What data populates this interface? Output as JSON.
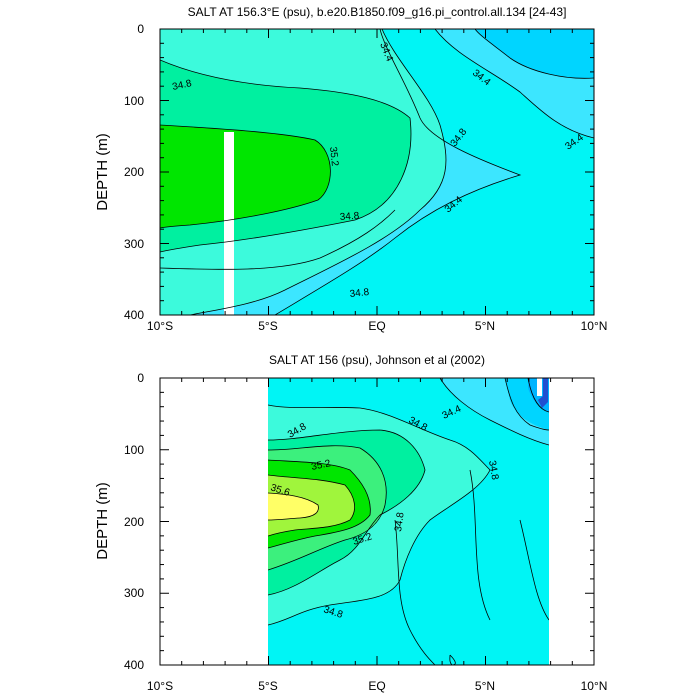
{
  "panels": [
    {
      "id": "model",
      "title": "SALT AT 156.3°E (psu), b.e20.B1850.f09_g16.pi_control.all.134 [24-43]",
      "ylabel": "DEPTH (m)",
      "xticklabels": [
        "10°S",
        "5°S",
        "EQ",
        "5°N",
        "10°N"
      ],
      "yticklabels": [
        "0",
        "100",
        "200",
        "300",
        "400"
      ],
      "contour_labels": [
        "34.8",
        "34.4",
        "34.8",
        "35.2",
        "34.8",
        "34.8",
        "34.4",
        "34.4",
        "34.4"
      ]
    },
    {
      "id": "obs",
      "title": "SALT AT 156 (psu), Johnson et al (2002)",
      "ylabel": "DEPTH (m)",
      "xticklabels": [
        "10°S",
        "5°S",
        "EQ",
        "5°N",
        "10°N"
      ],
      "yticklabels": [
        "0",
        "100",
        "200",
        "300",
        "400"
      ],
      "contour_labels": [
        "34.8",
        "34.8",
        "34.4",
        "35.2",
        "35.6",
        "35.2",
        "34.8",
        "34.8",
        "34.8"
      ]
    }
  ],
  "colors": {
    "c34_0": "#00b4ff",
    "c34_2": "#00d5ff",
    "c34_4": "#3ce6ff",
    "c34_6": "#00f5f5",
    "c34_8": "#3cfadc",
    "c35_0": "#00f0a0",
    "c35_2": "#3cf07d",
    "c35_4": "#00e600",
    "c35_6": "#a0f53c",
    "c35_8": "#ffff66",
    "deep": "#2050d0",
    "missing": "#ffffff"
  },
  "chart_data": [
    {
      "type": "heatmap",
      "title": "SALT AT 156.3°E (psu), b.e20.B1850.f09_g16.pi_control.all.134 [24-43]",
      "xlabel": "",
      "ylabel": "DEPTH (m)",
      "xlim": [
        -10,
        10
      ],
      "ylim": [
        400,
        0
      ],
      "xticks": [
        "10°S",
        "5°S",
        "EQ",
        "5°N",
        "10°N"
      ],
      "yticks": [
        0,
        100,
        200,
        300,
        400
      ],
      "contour_levels": [
        34.4,
        34.8,
        35.2
      ],
      "features": [
        {
          "what": "salinity maximum core",
          "lat_range": [
            -10,
            -2
          ],
          "depth_range": [
            140,
            250
          ],
          "value": 35.2
        },
        {
          "what": "fresh surface water",
          "lat_range": [
            4,
            10
          ],
          "depth_range": [
            0,
            100
          ],
          "value": 34.4
        },
        {
          "what": "missing-data strip",
          "lat_range": [
            -6.8,
            -6.2
          ],
          "depth_range": [
            145,
            400
          ]
        }
      ]
    },
    {
      "type": "heatmap",
      "title": "SALT AT 156 (psu), Johnson et al (2002)",
      "xlabel": "",
      "ylabel": "DEPTH (m)",
      "xlim": [
        -10,
        10
      ],
      "ylim": [
        400,
        0
      ],
      "xticks": [
        "10°S",
        "5°S",
        "EQ",
        "5°N",
        "10°N"
      ],
      "yticks": [
        0,
        100,
        200,
        300,
        400
      ],
      "data_lat_range": [
        -5,
        8
      ],
      "contour_levels": [
        34.4,
        34.8,
        35.2,
        35.6
      ],
      "features": [
        {
          "what": "salinity maximum core",
          "lat_range": [
            -5,
            -2
          ],
          "depth_range": [
            150,
            200
          ],
          "value": 35.6
        },
        {
          "what": "fresh surface water",
          "lat_range": [
            5,
            8
          ],
          "depth_range": [
            0,
            50
          ],
          "value": 34.4
        }
      ]
    }
  ]
}
